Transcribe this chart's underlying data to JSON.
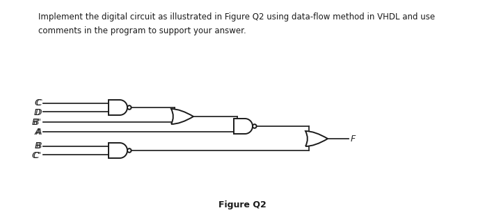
{
  "title_text": "Implement the digital circuit as illustrated in Figure Q2 using data-flow method in VHDL and use\ncomments in the program to support your answer.",
  "figure_label": "Figure Q2",
  "background_color": "#ffffff",
  "line_color": "#2a2a2a",
  "gate_fill": "#ffffff",
  "gate_edge": "#1a1a1a",
  "input_labels": [
    "C",
    "D",
    "B'",
    "A",
    "B",
    "C'"
  ],
  "output_label": "F",
  "fig_width": 6.97,
  "fig_height": 3.23,
  "dpi": 100
}
